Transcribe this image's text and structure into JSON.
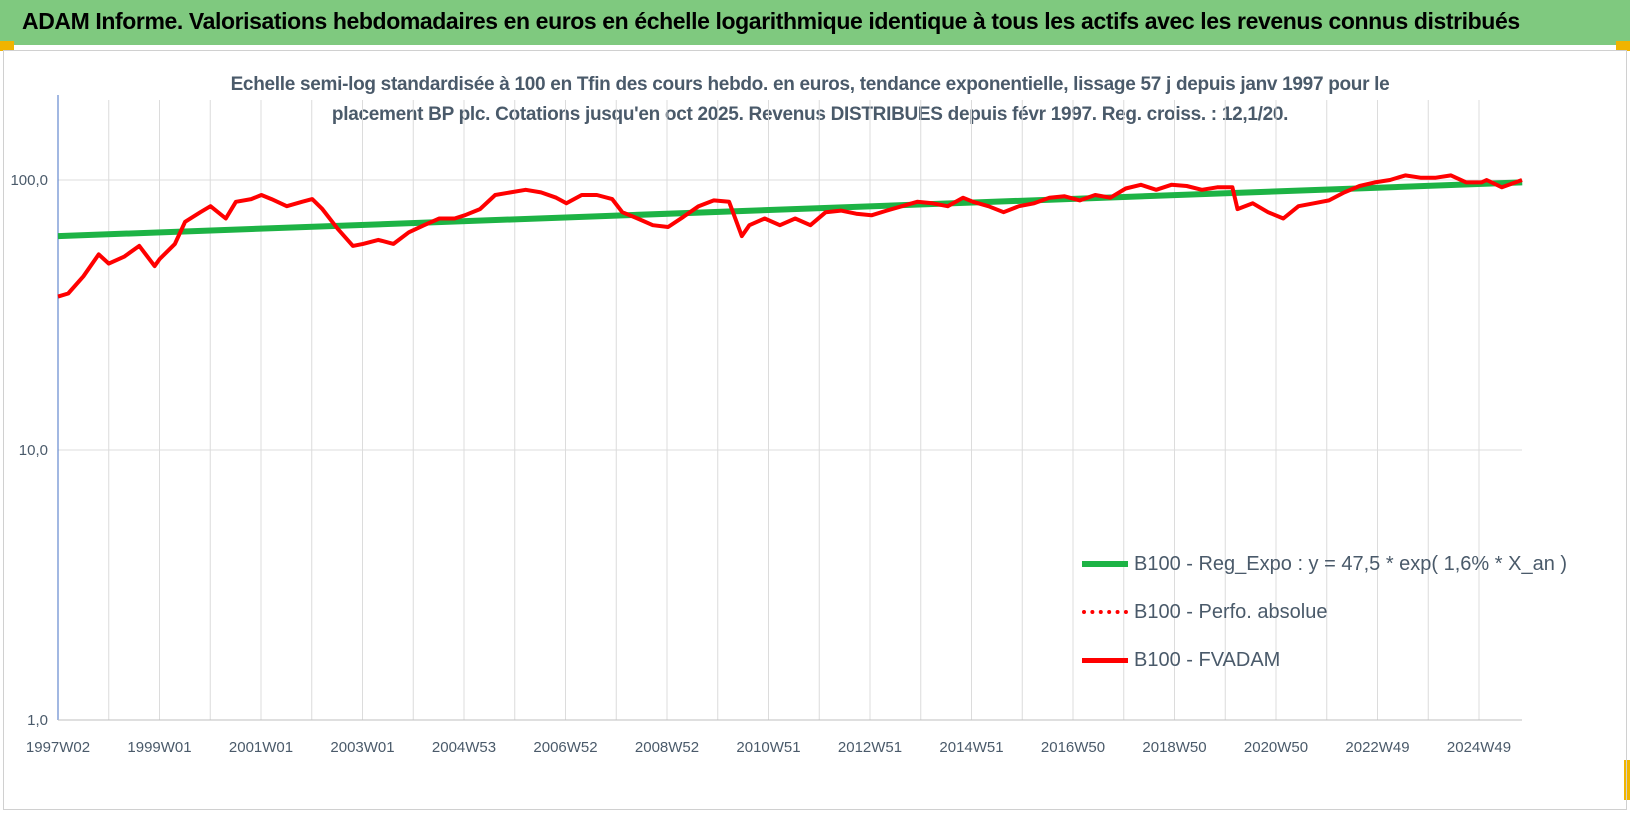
{
  "banner": {
    "title": "ADAM Informe. Valorisations hebdomadaires en euros en échelle logarithmique identique à tous les actifs avec les revenus connus distribués"
  },
  "colors": {
    "banner": "#7fc97f",
    "trend": "#1db345",
    "fvadam": "#ff0000",
    "perfo": "#ff0000",
    "axis_text": "#4a5a6a",
    "grid": "#dcdcdc"
  },
  "chart_data": {
    "type": "line",
    "title": "Echelle semi-log standardisée à 100 en Tfin des cours hebdo. en euros, tendance exponentielle, lissage 57 j depuis janv 1997 pour le placement BP plc. Cotations jusqu'en oct 2025. Revenus DISTRIBUES depuis févr 1997. Reg. croiss. : 12,1/20.",
    "title_lines": [
      "Echelle semi-log standardisée à 100 en Tfin des cours hebdo. en euros, tendance exponentielle, lissage 57 j depuis janv 1997 pour le",
      "placement BP plc. Cotations jusqu'en oct 2025. Revenus DISTRIBUES depuis févr 1997. Reg. croiss. : 12,1/20."
    ],
    "y_scale": "log",
    "ylim": [
      1,
      200
    ],
    "y_ticks": [
      1,
      10,
      100
    ],
    "y_tick_labels": [
      "1,0",
      "10,0",
      "100,0"
    ],
    "x_tick_labels": [
      "1997W02",
      "1999W01",
      "2001W01",
      "2003W01",
      "2004W53",
      "2006W52",
      "2008W52",
      "2010W51",
      "2012W51",
      "2014W51",
      "2016W50",
      "2018W50",
      "2020W50",
      "2022W49",
      "2024W49"
    ],
    "grid": true,
    "legend_position": "lower-right",
    "series": [
      {
        "name": "B100 - Reg_Expo : y = 47,5 * exp( 1,6% *  X_an )",
        "style": "solid",
        "x": [
          1997.0,
          2025.8
        ],
        "values": [
          62,
          98
        ]
      },
      {
        "name": "B100 - Perfo. absolue",
        "style": "dotted",
        "x": [],
        "values": []
      },
      {
        "name": "B100 - FVADAM",
        "style": "solid",
        "x": [
          1997.0,
          1997.2,
          1997.5,
          1997.8,
          1998.0,
          1998.3,
          1998.6,
          1998.9,
          1999.0,
          1999.3,
          1999.5,
          1999.8,
          2000.0,
          2000.3,
          2000.5,
          2000.8,
          2001.0,
          2001.2,
          2001.5,
          2001.8,
          2002.0,
          2002.2,
          2002.5,
          2002.8,
          2003.0,
          2003.3,
          2003.6,
          2003.9,
          2004.2,
          2004.5,
          2004.8,
          2005.0,
          2005.3,
          2005.6,
          2005.9,
          2006.2,
          2006.5,
          2006.8,
          2007.0,
          2007.3,
          2007.6,
          2007.9,
          2008.1,
          2008.4,
          2008.7,
          2009.0,
          2009.3,
          2009.6,
          2009.9,
          2010.2,
          2010.45,
          2010.6,
          2010.9,
          2011.2,
          2011.5,
          2011.8,
          2012.1,
          2012.4,
          2012.7,
          2013.0,
          2013.3,
          2013.6,
          2013.9,
          2014.2,
          2014.5,
          2014.8,
          2015.0,
          2015.3,
          2015.6,
          2015.9,
          2016.2,
          2016.5,
          2016.8,
          2017.1,
          2017.4,
          2017.7,
          2018.0,
          2018.3,
          2018.6,
          2018.9,
          2019.2,
          2019.5,
          2019.8,
          2020.1,
          2020.2,
          2020.5,
          2020.8,
          2021.1,
          2021.4,
          2021.7,
          2022.0,
          2022.3,
          2022.6,
          2022.9,
          2023.2,
          2023.5,
          2023.8,
          2024.1,
          2024.4,
          2024.7,
          2025.0,
          2025.1,
          2025.4,
          2025.8
        ],
        "values": [
          37,
          38,
          44,
          53,
          49,
          52,
          57,
          48,
          51,
          58,
          70,
          76,
          80,
          72,
          83,
          85,
          88,
          85,
          80,
          83,
          85,
          78,
          66,
          57,
          58,
          60,
          58,
          64,
          68,
          72,
          72,
          74,
          78,
          88,
          90,
          92,
          90,
          86,
          82,
          88,
          88,
          85,
          76,
          72,
          68,
          67,
          73,
          80,
          84,
          83,
          62,
          68,
          72,
          68,
          72,
          68,
          76,
          77,
          75,
          74,
          77,
          80,
          83,
          82,
          80,
          86,
          83,
          80,
          76,
          80,
          82,
          86,
          87,
          84,
          88,
          86,
          93,
          96,
          92,
          96,
          95,
          92,
          94,
          94,
          78,
          82,
          76,
          72,
          80,
          82,
          84,
          90,
          95,
          98,
          100,
          104,
          102,
          102,
          104,
          98,
          98,
          100,
          94,
          100
        ]
      }
    ]
  }
}
